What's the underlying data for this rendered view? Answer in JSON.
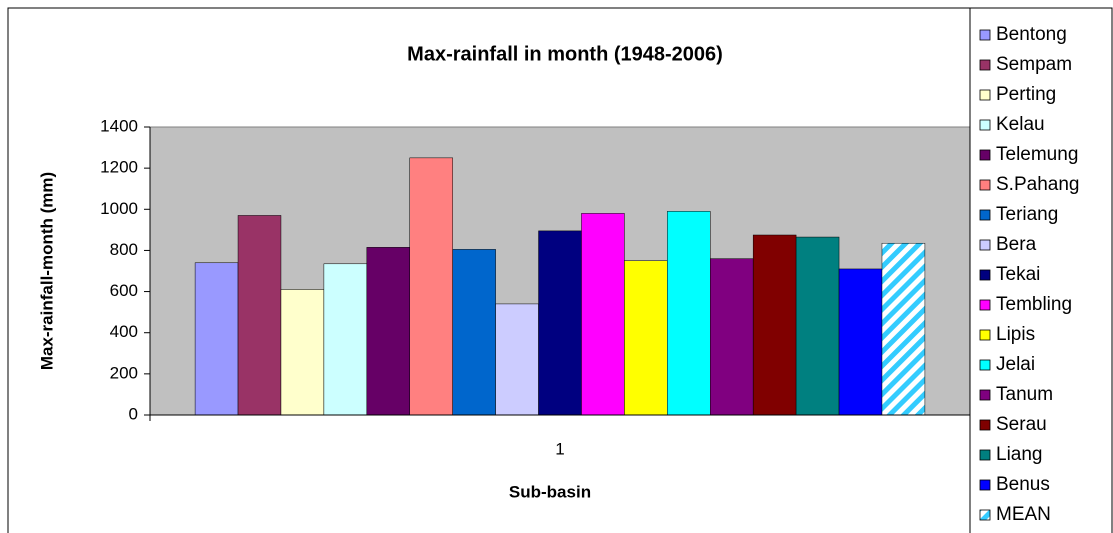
{
  "chart_data": {
    "type": "bar",
    "title": "Max-rainfall in month (1948-2006)",
    "x_label": "Sub-basin",
    "y_label": "Max-rainfall-month (mm)",
    "categories": [
      "1"
    ],
    "series": [
      {
        "name": "Bentong",
        "color": "#9999ff",
        "values": [
          740
        ]
      },
      {
        "name": "Sempam",
        "color": "#993366",
        "values": [
          970
        ]
      },
      {
        "name": "Perting",
        "color": "#ffffcc",
        "values": [
          610
        ]
      },
      {
        "name": "Kelau",
        "color": "#ccffff",
        "values": [
          735
        ]
      },
      {
        "name": "Telemung",
        "color": "#660066",
        "values": [
          815
        ]
      },
      {
        "name": "S.Pahang",
        "color": "#ff8080",
        "values": [
          1250
        ]
      },
      {
        "name": "Teriang",
        "color": "#0066cc",
        "values": [
          805
        ]
      },
      {
        "name": "Bera",
        "color": "#ccccff",
        "values": [
          540
        ]
      },
      {
        "name": "Tekai",
        "color": "#000080",
        "values": [
          895
        ]
      },
      {
        "name": "Tembling",
        "color": "#ff00ff",
        "values": [
          980
        ]
      },
      {
        "name": "Lipis",
        "color": "#ffff00",
        "values": [
          750
        ]
      },
      {
        "name": "Jelai",
        "color": "#00ffff",
        "values": [
          990
        ]
      },
      {
        "name": "Tanum",
        "color": "#800080",
        "values": [
          760
        ]
      },
      {
        "name": "Serau",
        "color": "#800000",
        "values": [
          875
        ]
      },
      {
        "name": "Liang",
        "color": "#008080",
        "values": [
          865
        ]
      },
      {
        "name": "Benus",
        "color": "#0000ff",
        "values": [
          710
        ]
      },
      {
        "name": "MEAN",
        "color": "#33ccff",
        "pattern": "diagonal-stripes",
        "values": [
          835
        ]
      }
    ],
    "ylim": [
      0,
      1400
    ],
    "yticks": [
      0,
      200,
      400,
      600,
      800,
      1000,
      1200,
      1400
    ],
    "grid": false,
    "plot_background": "#c0c0c0",
    "legend": "right"
  }
}
